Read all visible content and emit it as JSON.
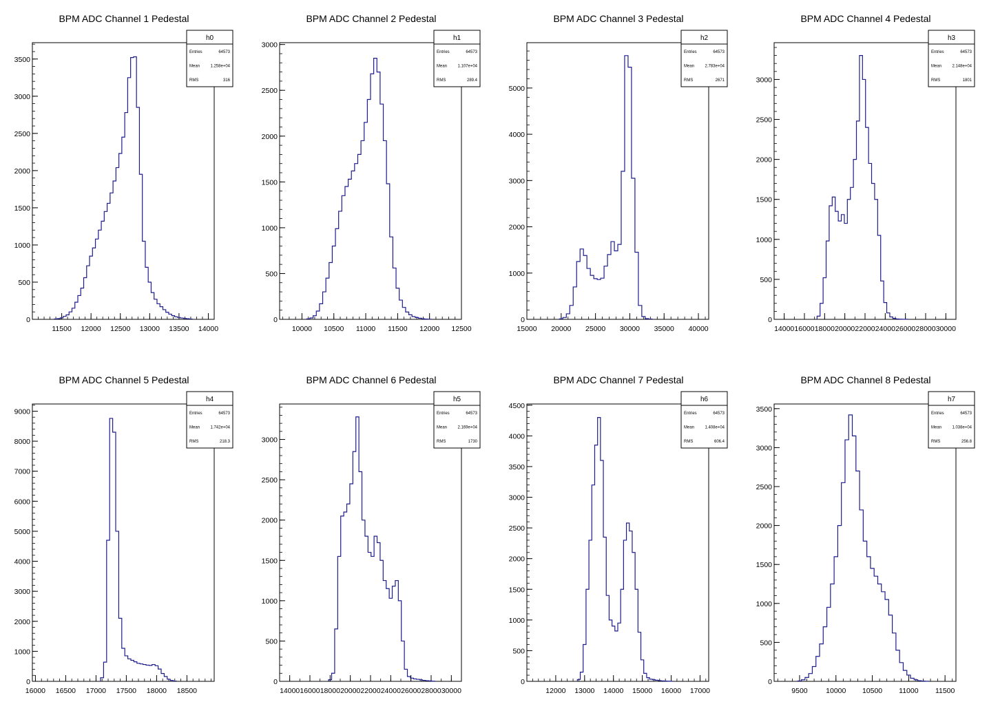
{
  "colors": {
    "histogram_line": "#1c1c8c",
    "axis": "#000000",
    "background": "#ffffff"
  },
  "chart_data": [
    {
      "type": "histogram",
      "title": "BPM ADC Channel 1 Pedestal",
      "stats": {
        "name": "h0",
        "rows": [
          {
            "label": "Entries",
            "value": "64573"
          },
          {
            "label": "Mean",
            "value": "1.258e+04"
          },
          {
            "label": "RMS",
            "value": "316"
          }
        ]
      },
      "xlim": [
        11000,
        14100
      ],
      "ylim": [
        0,
        3720
      ],
      "xticks": [
        11500,
        12000,
        12500,
        13000,
        13500,
        14000
      ],
      "yticks": [
        500,
        1000,
        1500,
        2000,
        2500,
        3000,
        3500
      ],
      "ytick_labels": [
        "500",
        "1000",
        "1500",
        "2000",
        "2500",
        "3000",
        "3500"
      ],
      "x_minor_step": 100,
      "x": [
        11400,
        11450,
        11500,
        11550,
        11600,
        11650,
        11700,
        11750,
        11800,
        11850,
        11900,
        11950,
        12000,
        12050,
        12100,
        12150,
        12200,
        12250,
        12300,
        12350,
        12400,
        12450,
        12500,
        12550,
        12600,
        12650,
        12700,
        12750,
        12800,
        12850,
        12900,
        12950,
        13000,
        13050,
        13100,
        13150,
        13200,
        13250,
        13300,
        13350,
        13400,
        13450,
        13500,
        13550,
        13600,
        13650,
        13700
      ],
      "y": [
        5,
        10,
        20,
        40,
        60,
        100,
        150,
        230,
        320,
        420,
        560,
        720,
        850,
        960,
        1080,
        1200,
        1320,
        1450,
        1560,
        1700,
        1860,
        2040,
        2230,
        2450,
        2780,
        3250,
        3520,
        3530,
        2850,
        1950,
        1050,
        700,
        500,
        360,
        270,
        210,
        170,
        130,
        95,
        70,
        50,
        35,
        25,
        18,
        12,
        8,
        4
      ]
    },
    {
      "type": "histogram",
      "title": "BPM ADC Channel 2 Pedestal",
      "stats": {
        "name": "h1",
        "rows": [
          {
            "label": "Entries",
            "value": "64573"
          },
          {
            "label": "Mean",
            "value": "1.107e+04"
          },
          {
            "label": "RMS",
            "value": "289.4"
          }
        ]
      },
      "xlim": [
        9650,
        12500
      ],
      "ylim": [
        0,
        3020
      ],
      "xticks": [
        10000,
        10500,
        11000,
        11500,
        12000,
        12500
      ],
      "yticks": [
        500,
        1000,
        1500,
        2000,
        2500,
        3000
      ],
      "ytick_labels": [
        "500",
        "1000",
        "1500",
        "2000",
        "2500",
        "3000"
      ],
      "x_minor_step": 100,
      "x": [
        10100,
        10150,
        10200,
        10250,
        10300,
        10350,
        10400,
        10450,
        10500,
        10550,
        10600,
        10650,
        10700,
        10750,
        10800,
        10850,
        10900,
        10950,
        11000,
        11050,
        11100,
        11150,
        11200,
        11250,
        11300,
        11350,
        11400,
        11450,
        11500,
        11550,
        11600,
        11650,
        11700,
        11750,
        11800,
        11850,
        11900,
        11950,
        12000
      ],
      "y": [
        5,
        15,
        40,
        90,
        170,
        300,
        450,
        620,
        800,
        990,
        1180,
        1350,
        1450,
        1530,
        1620,
        1700,
        1800,
        1950,
        2150,
        2400,
        2680,
        2850,
        2700,
        2350,
        1950,
        1480,
        900,
        560,
        340,
        210,
        130,
        80,
        50,
        30,
        20,
        12,
        6,
        3,
        1
      ]
    },
    {
      "type": "histogram",
      "title": "BPM ADC Channel 3 Pedestal",
      "stats": {
        "name": "h2",
        "rows": [
          {
            "label": "Entries",
            "value": "64573"
          },
          {
            "label": "Mean",
            "value": "2.783e+04"
          },
          {
            "label": "RMS",
            "value": "2671"
          }
        ]
      },
      "xlim": [
        15000,
        41500
      ],
      "ylim": [
        0,
        5980
      ],
      "xticks": [
        15000,
        20000,
        25000,
        30000,
        35000,
        40000
      ],
      "yticks": [
        1000,
        2000,
        3000,
        4000,
        5000
      ],
      "ytick_labels": [
        "1000",
        "2000",
        "3000",
        "4000",
        "5000"
      ],
      "x_minor_step": 1000,
      "x": [
        20000,
        20500,
        21000,
        21500,
        22000,
        22500,
        23000,
        23500,
        24000,
        24500,
        25000,
        25500,
        26000,
        26500,
        27000,
        27500,
        28000,
        28500,
        29000,
        29500,
        30000,
        30500,
        31000,
        31500,
        32000,
        32500,
        33000
      ],
      "y": [
        10,
        40,
        120,
        300,
        700,
        1250,
        1520,
        1380,
        1100,
        950,
        880,
        860,
        890,
        1150,
        1400,
        1680,
        1480,
        1620,
        3200,
        5700,
        5450,
        3050,
        1450,
        300,
        60,
        15,
        5
      ]
    },
    {
      "type": "histogram",
      "title": "BPM ADC Channel 4 Pedestal",
      "stats": {
        "name": "h3",
        "rows": [
          {
            "label": "Entries",
            "value": "64573"
          },
          {
            "label": "Mean",
            "value": "2.148e+04"
          },
          {
            "label": "RMS",
            "value": "1801"
          }
        ]
      },
      "xlim": [
        13000,
        31000
      ],
      "ylim": [
        0,
        3460
      ],
      "xticks": [
        14000,
        16000,
        18000,
        20000,
        22000,
        24000,
        26000,
        28000,
        30000
      ],
      "yticks": [
        500,
        1000,
        1500,
        2000,
        2500,
        3000
      ],
      "ytick_labels": [
        "500",
        "1000",
        "1500",
        "2000",
        "2500",
        "3000"
      ],
      "x_minor_step": 1000,
      "x": [
        17400,
        17700,
        18000,
        18300,
        18600,
        18900,
        19200,
        19500,
        19800,
        20100,
        20400,
        20700,
        21000,
        21300,
        21600,
        21900,
        22200,
        22500,
        22800,
        23100,
        23400,
        23700,
        24000,
        24300,
        24600,
        24900,
        25200,
        25500,
        25800,
        26100
      ],
      "y": [
        40,
        200,
        520,
        980,
        1420,
        1530,
        1350,
        1230,
        1310,
        1200,
        1500,
        1650,
        2000,
        2480,
        3300,
        3000,
        2400,
        1950,
        1700,
        1500,
        1050,
        480,
        210,
        80,
        30,
        12,
        5,
        2,
        1,
        1
      ]
    },
    {
      "type": "histogram",
      "title": "BPM ADC Channel 5 Pedestal",
      "stats": {
        "name": "h4",
        "rows": [
          {
            "label": "Entries",
            "value": "64573"
          },
          {
            "label": "Mean",
            "value": "1.742e+04"
          },
          {
            "label": "RMS",
            "value": "218.3"
          }
        ]
      },
      "xlim": [
        15950,
        18950
      ],
      "ylim": [
        0,
        9240
      ],
      "xticks": [
        16000,
        16500,
        17000,
        17500,
        18000,
        18500
      ],
      "yticks": [
        1000,
        2000,
        3000,
        4000,
        5000,
        6000,
        7000,
        8000,
        9000
      ],
      "ytick_labels": [
        "1000",
        "2000",
        "3000",
        "4000",
        "5000",
        "6000",
        "7000",
        "8000",
        "9000"
      ],
      "x_minor_step": 100,
      "x": [
        17100,
        17150,
        17200,
        17250,
        17300,
        17350,
        17400,
        17450,
        17500,
        17550,
        17600,
        17650,
        17700,
        17750,
        17800,
        17850,
        17900,
        17950,
        18000,
        18050,
        18100,
        18150,
        18200,
        18250,
        18300
      ],
      "y": [
        120,
        640,
        4700,
        8760,
        8300,
        5000,
        2100,
        1100,
        850,
        750,
        700,
        650,
        600,
        580,
        560,
        540,
        530,
        560,
        520,
        410,
        260,
        160,
        70,
        30,
        10
      ]
    },
    {
      "type": "histogram",
      "title": "BPM ADC Channel 6 Pedestal",
      "stats": {
        "name": "h5",
        "rows": [
          {
            "label": "Entries",
            "value": "64573"
          },
          {
            "label": "Mean",
            "value": "2.169e+04"
          },
          {
            "label": "RMS",
            "value": "1730"
          }
        ]
      },
      "xlim": [
        13000,
        31000
      ],
      "ylim": [
        0,
        3440
      ],
      "xticks": [
        14000,
        16000,
        18000,
        20000,
        22000,
        24000,
        26000,
        28000,
        30000
      ],
      "yticks": [
        500,
        1000,
        1500,
        2000,
        2500,
        3000
      ],
      "ytick_labels": [
        "500",
        "1000",
        "1500",
        "2000",
        "2500",
        "3000"
      ],
      "x_minor_step": 1000,
      "x": [
        18000,
        18300,
        18600,
        18900,
        19200,
        19500,
        19800,
        20100,
        20400,
        20700,
        21000,
        21300,
        21600,
        21900,
        22200,
        22500,
        22800,
        23100,
        23400,
        23700,
        24000,
        24300,
        24600,
        24900,
        25200,
        25500,
        25800,
        26100,
        26400,
        26700,
        27000,
        27300,
        27600,
        27900,
        28200
      ],
      "y": [
        20,
        100,
        650,
        1550,
        2050,
        2100,
        2200,
        2450,
        2850,
        3280,
        2600,
        2000,
        1800,
        1600,
        1550,
        1800,
        1720,
        1500,
        1250,
        1150,
        1030,
        1180,
        1250,
        1000,
        500,
        150,
        60,
        40,
        30,
        25,
        18,
        12,
        8,
        5,
        2
      ]
    },
    {
      "type": "histogram",
      "title": "BPM ADC Channel 7 Pedestal",
      "stats": {
        "name": "h6",
        "rows": [
          {
            "label": "Entries",
            "value": "64573"
          },
          {
            "label": "Mean",
            "value": "1.408e+04"
          },
          {
            "label": "RMS",
            "value": "606.4"
          }
        ]
      },
      "xlim": [
        11000,
        17300
      ],
      "ylim": [
        0,
        4520
      ],
      "xticks": [
        12000,
        13000,
        14000,
        15000,
        16000,
        17000
      ],
      "yticks": [
        500,
        1000,
        1500,
        2000,
        2500,
        3000,
        3500,
        4000,
        4500
      ],
      "ytick_labels": [
        "500",
        "1000",
        "1500",
        "2000",
        "2500",
        "3000",
        "3500",
        "4000",
        "4500"
      ],
      "x_minor_step": 200,
      "x": [
        12800,
        12900,
        13000,
        13100,
        13200,
        13300,
        13400,
        13500,
        13600,
        13700,
        13800,
        13900,
        14000,
        14100,
        14200,
        14300,
        14400,
        14500,
        14600,
        14700,
        14800,
        14900,
        15000,
        15100,
        15200,
        15300,
        15400,
        15500,
        15600,
        15700,
        15800,
        15900,
        16000
      ],
      "y": [
        30,
        150,
        600,
        1500,
        2300,
        3200,
        3850,
        4300,
        3600,
        2350,
        1400,
        1000,
        900,
        820,
        950,
        1500,
        2300,
        2580,
        2450,
        2100,
        1500,
        800,
        350,
        130,
        60,
        35,
        25,
        18,
        12,
        8,
        5,
        3,
        1
      ]
    },
    {
      "type": "histogram",
      "title": "BPM ADC Channel 8 Pedestal",
      "stats": {
        "name": "h7",
        "rows": [
          {
            "label": "Entries",
            "value": "64573"
          },
          {
            "label": "Mean",
            "value": "1.038e+04"
          },
          {
            "label": "RMS",
            "value": "256.8"
          }
        ]
      },
      "xlim": [
        9150,
        11650
      ],
      "ylim": [
        0,
        3560
      ],
      "xticks": [
        9500,
        10000,
        10500,
        11000,
        11500
      ],
      "yticks": [
        500,
        1000,
        1500,
        2000,
        2500,
        3000,
        3500
      ],
      "ytick_labels": [
        "500",
        "1000",
        "1500",
        "2000",
        "2500",
        "3000",
        "3500"
      ],
      "x_minor_step": 100,
      "x": [
        9500,
        9550,
        9600,
        9650,
        9700,
        9750,
        9800,
        9850,
        9900,
        9950,
        10000,
        10050,
        10100,
        10150,
        10200,
        10250,
        10300,
        10350,
        10400,
        10450,
        10500,
        10550,
        10600,
        10650,
        10700,
        10750,
        10800,
        10850,
        10900,
        10950,
        11000,
        11050,
        11100,
        11150,
        11200,
        11250
      ],
      "y": [
        5,
        20,
        50,
        100,
        190,
        320,
        480,
        700,
        950,
        1250,
        1600,
        2000,
        2550,
        3100,
        3420,
        3150,
        2700,
        2200,
        1800,
        1600,
        1450,
        1350,
        1250,
        1150,
        1050,
        850,
        620,
        400,
        240,
        140,
        80,
        40,
        20,
        8,
        3,
        1
      ]
    }
  ]
}
